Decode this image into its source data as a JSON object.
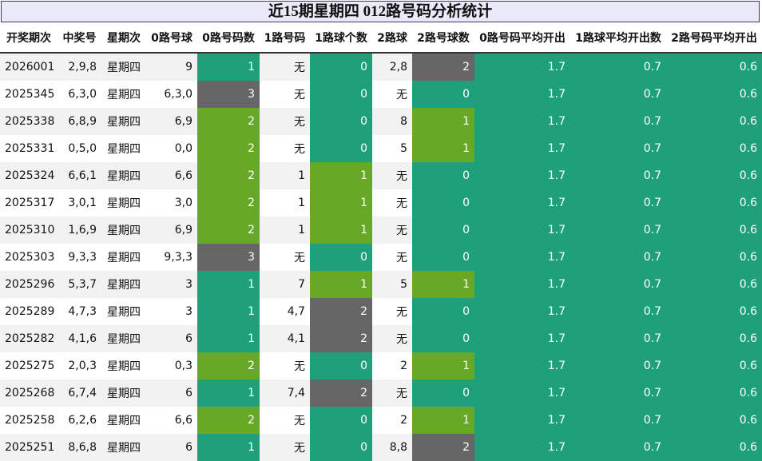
{
  "title": "近15期星期四 012路号码分析统计",
  "headers": [
    "开奖期次",
    "中奖号",
    "星期次",
    "0路号球",
    "0路号码数",
    "1路号码",
    "1路球个数",
    "2路球",
    "2路号球数",
    "0路号码平均开出",
    "1路球平均开出数",
    "2路号码平均开出"
  ],
  "rows": [
    [
      "2026001",
      "2,9,8",
      "星期四",
      "9",
      "1",
      "无",
      "0",
      "2,8",
      "2",
      "1.7",
      "0.7",
      "0.6"
    ],
    [
      "2025345",
      "6,3,0",
      "星期四",
      "6,3,0",
      "3",
      "无",
      "0",
      "无",
      "0",
      "1.7",
      "0.7",
      "0.6"
    ],
    [
      "2025338",
      "6,8,9",
      "星期四",
      "6,9",
      "2",
      "无",
      "0",
      "8",
      "1",
      "1.7",
      "0.7",
      "0.6"
    ],
    [
      "2025331",
      "0,5,0",
      "星期四",
      "0,0",
      "2",
      "无",
      "0",
      "5",
      "1",
      "1.7",
      "0.7",
      "0.6"
    ],
    [
      "2025324",
      "6,6,1",
      "星期四",
      "6,6",
      "2",
      "1",
      "1",
      "无",
      "0",
      "1.7",
      "0.7",
      "0.6"
    ],
    [
      "2025317",
      "3,0,1",
      "星期四",
      "3,0",
      "2",
      "1",
      "1",
      "无",
      "0",
      "1.7",
      "0.7",
      "0.6"
    ],
    [
      "2025310",
      "1,6,9",
      "星期四",
      "6,9",
      "2",
      "1",
      "1",
      "无",
      "0",
      "1.7",
      "0.7",
      "0.6"
    ],
    [
      "2025303",
      "9,3,3",
      "星期四",
      "9,3,3",
      "3",
      "无",
      "0",
      "无",
      "0",
      "1.7",
      "0.7",
      "0.6"
    ],
    [
      "2025296",
      "5,3,7",
      "星期四",
      "3",
      "1",
      "7",
      "1",
      "5",
      "1",
      "1.7",
      "0.7",
      "0.6"
    ],
    [
      "2025289",
      "4,7,3",
      "星期四",
      "3",
      "1",
      "4,7",
      "2",
      "无",
      "0",
      "1.7",
      "0.7",
      "0.6"
    ],
    [
      "2025282",
      "4,1,6",
      "星期四",
      "6",
      "1",
      "4,1",
      "2",
      "无",
      "0",
      "1.7",
      "0.7",
      "0.6"
    ],
    [
      "2025275",
      "2,0,3",
      "星期四",
      "0,3",
      "2",
      "无",
      "0",
      "2",
      "1",
      "1.7",
      "0.7",
      "0.6"
    ],
    [
      "2025268",
      "6,7,4",
      "星期四",
      "6",
      "1",
      "7,4",
      "2",
      "无",
      "0",
      "1.7",
      "0.7",
      "0.6"
    ],
    [
      "2025258",
      "6,2,6",
      "星期四",
      "6,6",
      "2",
      "无",
      "0",
      "2",
      "1",
      "1.7",
      "0.7",
      "0.6"
    ],
    [
      "2025251",
      "8,6,8",
      "星期四",
      "6",
      "1",
      "无",
      "0",
      "8,8",
      "2",
      "1.7",
      "0.7",
      "0.6"
    ]
  ],
  "colors": {
    "count_0": "#1ea07a",
    "count_1": "#1ea07a",
    "count_2": "#67a826",
    "count_3": "#666666",
    "average": "#1ea07a"
  }
}
